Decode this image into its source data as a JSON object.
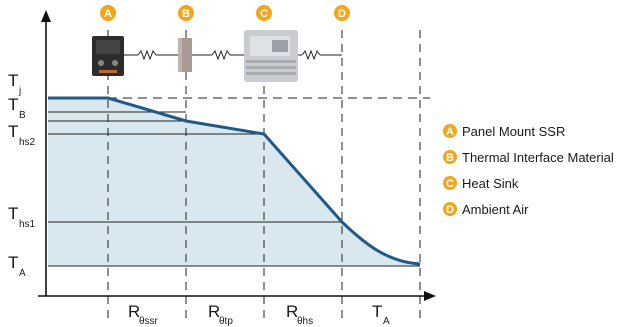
{
  "markers": [
    {
      "letter": "A"
    },
    {
      "letter": "B"
    },
    {
      "letter": "C"
    },
    {
      "letter": "D"
    }
  ],
  "y_labels": [
    {
      "main": "T",
      "sub": "j"
    },
    {
      "main": "T",
      "sub": "B"
    },
    {
      "main": "T",
      "sub": "hs2"
    },
    {
      "main": "T",
      "sub": "hs1"
    },
    {
      "main": "T",
      "sub": "A"
    }
  ],
  "x_labels": [
    {
      "main": "R",
      "sub": "θssr"
    },
    {
      "main": "R",
      "sub": "θtp"
    },
    {
      "main": "R",
      "sub": "θhs"
    },
    {
      "main": "T",
      "sub": "A"
    }
  ],
  "legend": [
    {
      "letter": "A",
      "label": "Panel Mount SSR"
    },
    {
      "letter": "B",
      "label": "Thermal Interface Material"
    },
    {
      "letter": "C",
      "label": "Heat Sink"
    },
    {
      "letter": "D",
      "label": "Ambient Air"
    }
  ],
  "colors": {
    "badge": "#f2a618",
    "fill": "#d9e8ef",
    "curve": "#1f5a88",
    "axis": "#111111"
  },
  "component_icons": [
    "ssr-module-icon",
    "thermal-pad-icon",
    "heat-sink-icon"
  ]
}
